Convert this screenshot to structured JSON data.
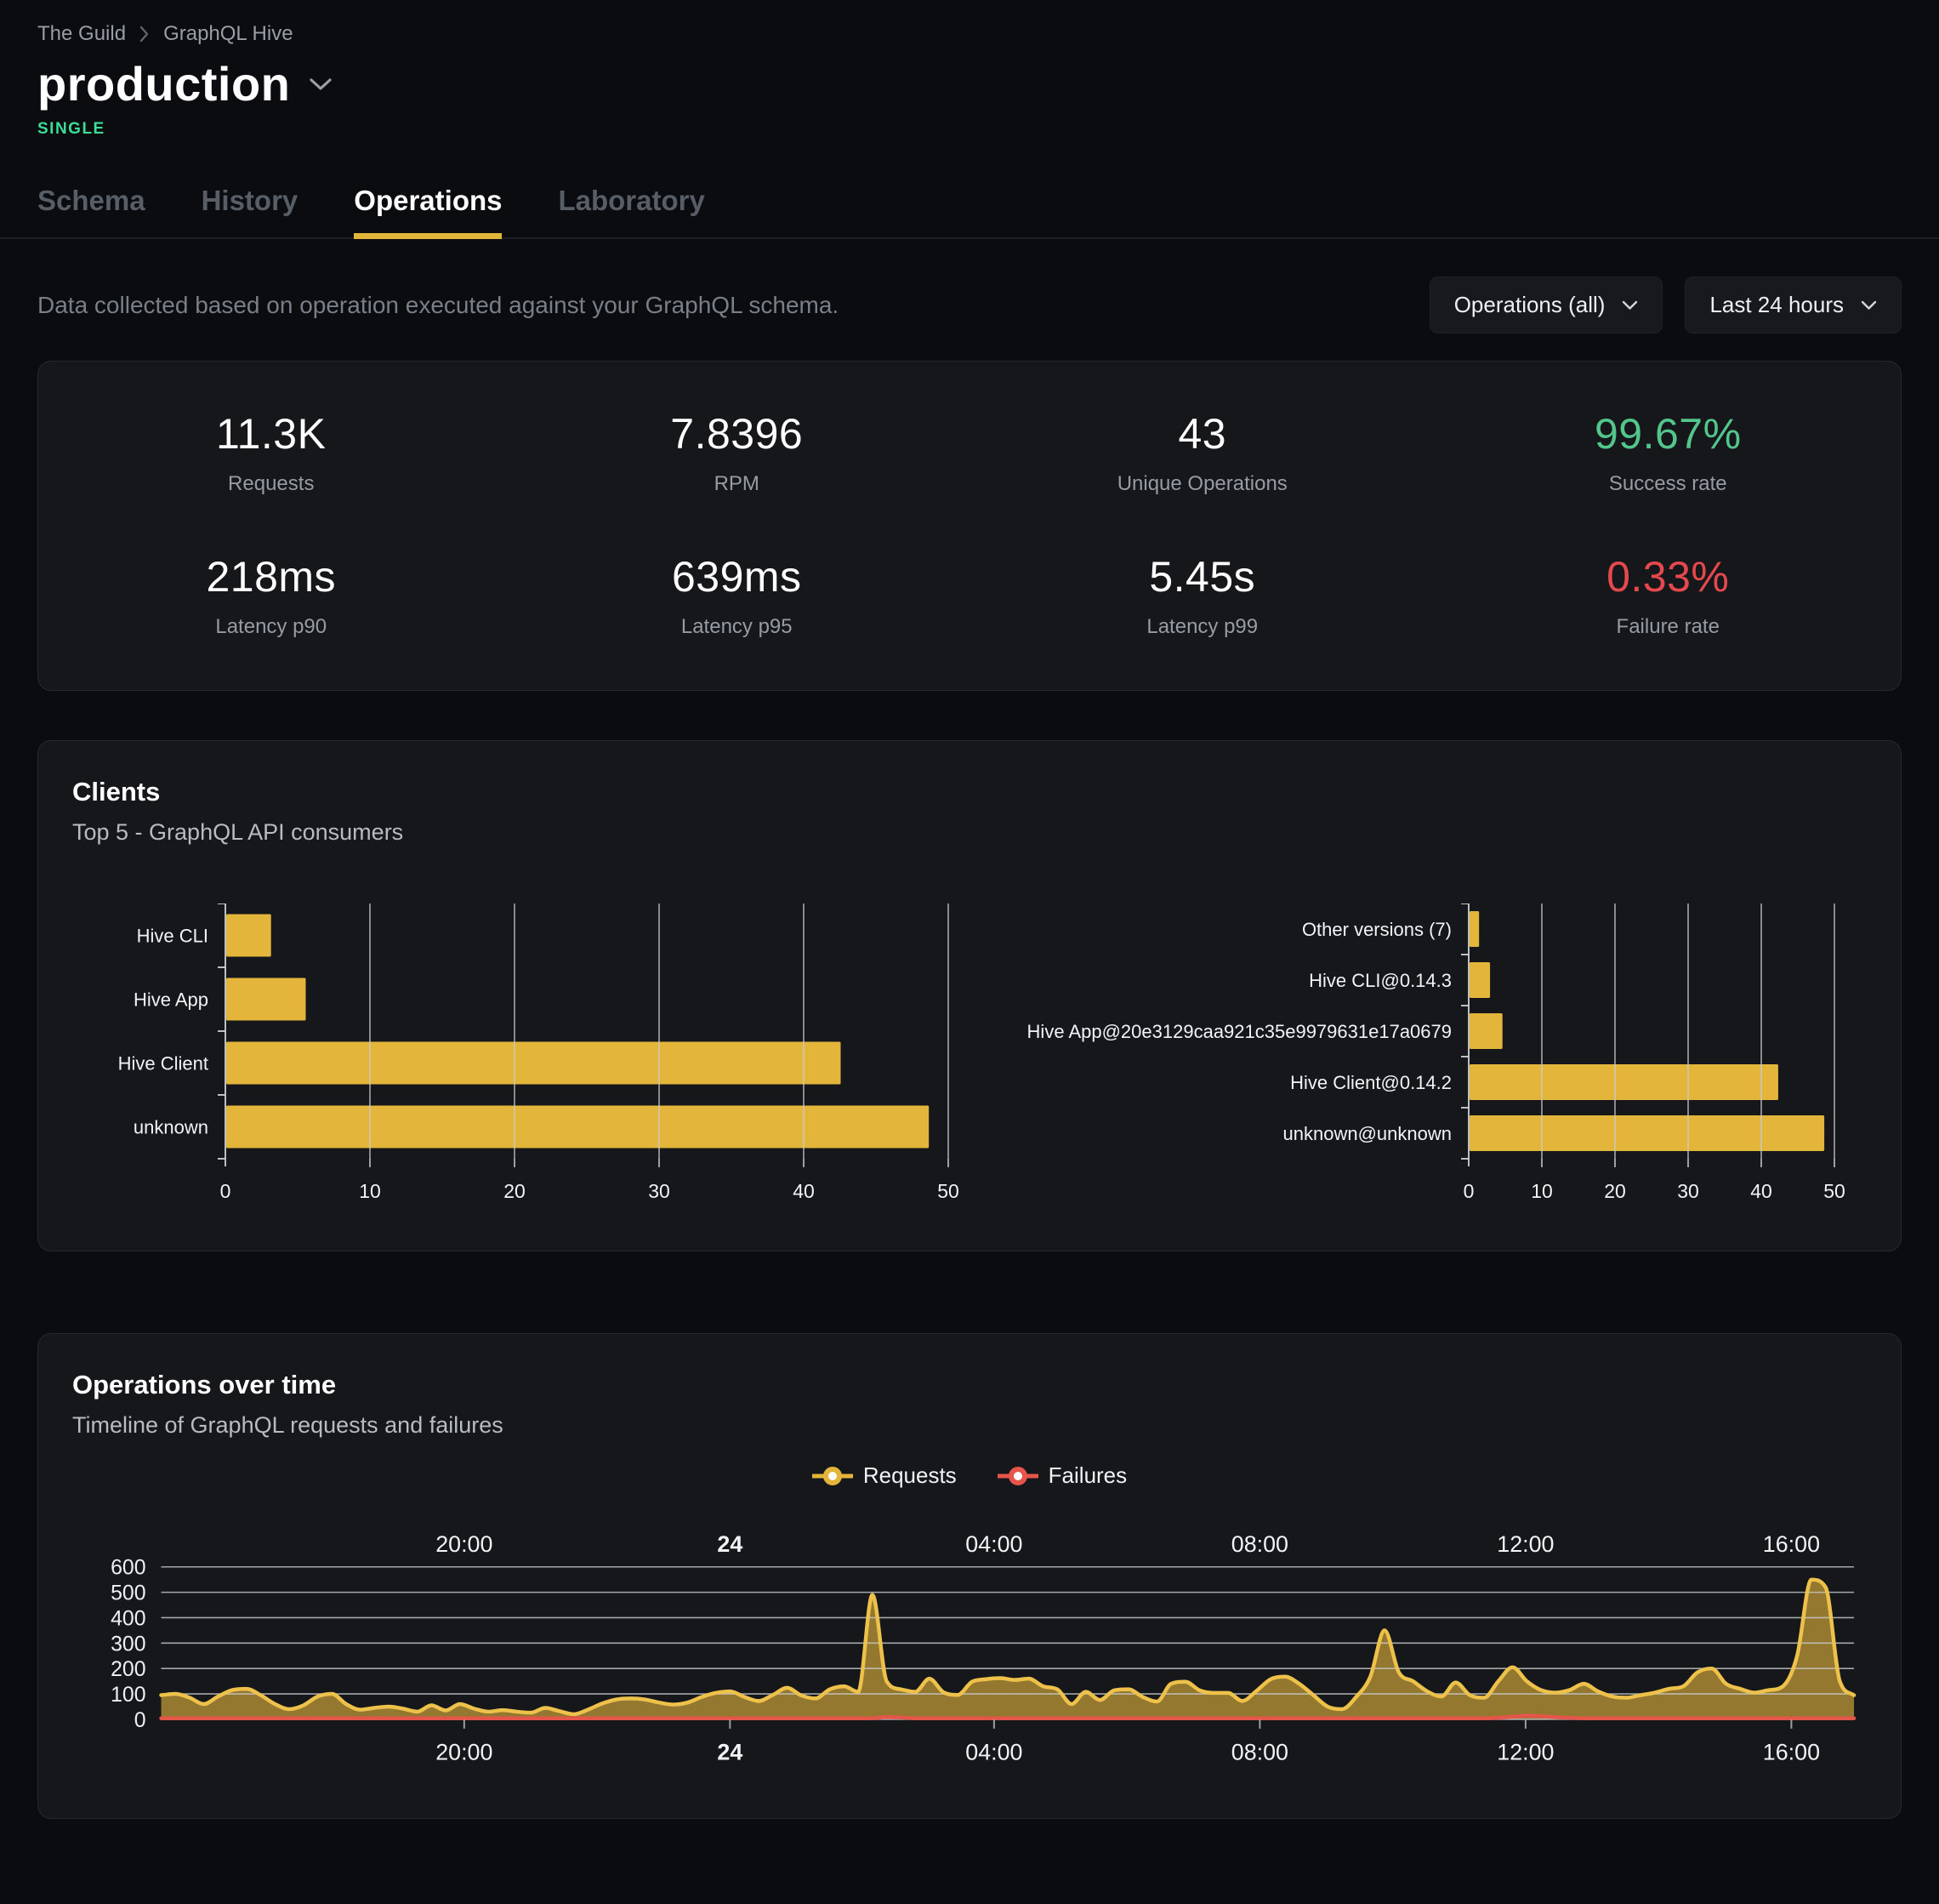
{
  "breadcrumb": {
    "items": [
      "The Guild",
      "GraphQL Hive"
    ]
  },
  "header": {
    "title": "production",
    "badge": "SINGLE"
  },
  "tabs": [
    {
      "label": "Schema",
      "active": false
    },
    {
      "label": "History",
      "active": false
    },
    {
      "label": "Operations",
      "active": true
    },
    {
      "label": "Laboratory",
      "active": false
    }
  ],
  "controls": {
    "description": "Data collected based on operation executed against your GraphQL schema.",
    "operations_filter": "Operations (all)",
    "period_filter": "Last 24 hours"
  },
  "stats": [
    {
      "value": "11.3K",
      "label": "Requests",
      "color": "#ffffff"
    },
    {
      "value": "7.8396",
      "label": "RPM",
      "color": "#ffffff"
    },
    {
      "value": "43",
      "label": "Unique Operations",
      "color": "#ffffff"
    },
    {
      "value": "99.67%",
      "label": "Success rate",
      "color": "#52c68b"
    },
    {
      "value": "218ms",
      "label": "Latency p90",
      "color": "#ffffff"
    },
    {
      "value": "639ms",
      "label": "Latency p95",
      "color": "#ffffff"
    },
    {
      "value": "5.45s",
      "label": "Latency p99",
      "color": "#ffffff"
    },
    {
      "value": "0.33%",
      "label": "Failure rate",
      "color": "#e5484d"
    }
  ],
  "clients_panel": {
    "title": "Clients",
    "subtitle": "Top 5 - GraphQL API consumers"
  },
  "ops_panel": {
    "title": "Operations over time",
    "subtitle": "Timeline of GraphQL requests and failures",
    "legend": [
      {
        "label": "Requests",
        "color": "#e3b53b"
      },
      {
        "label": "Failures",
        "color": "#e5554a"
      }
    ]
  },
  "colors": {
    "accent": "#e3b53b",
    "accent_bright": "#eec24a",
    "failures": "#e5554a",
    "grid": "#c9ccce"
  },
  "chart_data": [
    {
      "type": "bar",
      "orientation": "horizontal",
      "title": "Clients by name",
      "categories": [
        "Hive CLI",
        "Hive App",
        "Hive Client",
        "unknown"
      ],
      "values": [
        3.1,
        5.5,
        42.5,
        48.6
      ],
      "xlim": [
        0,
        50
      ],
      "ticks": [
        0,
        10,
        20,
        30,
        40,
        50
      ],
      "grid": true,
      "legend_position": "none"
    },
    {
      "type": "bar",
      "orientation": "horizontal",
      "title": "Clients by version",
      "categories": [
        "Other versions (7)",
        "Hive CLI@0.14.3",
        "Hive App@20e3129caa921c35e9979631e17a0679",
        "Hive Client@0.14.2",
        "unknown@unknown"
      ],
      "values": [
        1.3,
        2.8,
        4.5,
        42.2,
        48.5
      ],
      "xlim": [
        0,
        50
      ],
      "ticks": [
        0,
        10,
        20,
        30,
        40,
        50
      ],
      "grid": true,
      "legend_position": "none"
    },
    {
      "type": "area",
      "title": "Operations over time",
      "subtitle": "Timeline of GraphQL requests and failures",
      "xlabel": "",
      "ylabel": "",
      "ylim": [
        0,
        600
      ],
      "yticks": [
        0,
        100,
        200,
        300,
        400,
        500,
        600
      ],
      "grid": true,
      "legend_position": "top-center",
      "xticks": [
        {
          "label": "20:00",
          "f": 0.179,
          "bold": false
        },
        {
          "label": "24",
          "f": 0.336,
          "bold": true
        },
        {
          "label": "04:00",
          "f": 0.492,
          "bold": false
        },
        {
          "label": "08:00",
          "f": 0.649,
          "bold": false
        },
        {
          "label": "12:00",
          "f": 0.806,
          "bold": false
        },
        {
          "label": "16:00",
          "f": 0.963,
          "bold": false
        }
      ],
      "series": [
        {
          "name": "Requests",
          "color": "#e3b53b",
          "values": [
            95,
            100,
            85,
            60,
            90,
            115,
            120,
            95,
            60,
            40,
            55,
            90,
            100,
            60,
            38,
            45,
            50,
            42,
            30,
            55,
            35,
            60,
            42,
            30,
            36,
            30,
            26,
            45,
            32,
            20,
            38,
            62,
            78,
            82,
            78,
            66,
            58,
            66,
            88,
            104,
            110,
            88,
            72,
            96,
            124,
            94,
            82,
            118,
            130,
            108,
            490,
            150,
            118,
            108,
            160,
            106,
            96,
            148,
            158,
            162,
            155,
            160,
            130,
            118,
            60,
            108,
            76,
            114,
            118,
            88,
            70,
            140,
            148,
            114,
            104,
            104,
            72,
            112,
            158,
            168,
            140,
            95,
            50,
            40,
            88,
            168,
            350,
            185,
            150,
            110,
            90,
            145,
            95,
            85,
            150,
            205,
            150,
            115,
            105,
            115,
            140,
            110,
            90,
            85,
            95,
            105,
            120,
            130,
            185,
            200,
            140,
            120,
            105,
            115,
            130,
            250,
            550,
            520,
            150,
            95
          ]
        },
        {
          "name": "Failures",
          "color": "#e5554a",
          "values": [
            4,
            4,
            4,
            4,
            4,
            4,
            4,
            4,
            4,
            4,
            4,
            4,
            4,
            4,
            4,
            4,
            4,
            4,
            4,
            4,
            4,
            4,
            4,
            4,
            4,
            4,
            4,
            4,
            4,
            4,
            4,
            4,
            4,
            4,
            4,
            4,
            4,
            4,
            4,
            4,
            4,
            4,
            4,
            4,
            4,
            4,
            4,
            4,
            4,
            4,
            4,
            9,
            7,
            4,
            4,
            4,
            4,
            4,
            4,
            4,
            4,
            4,
            4,
            4,
            4,
            4,
            4,
            4,
            4,
            4,
            4,
            4,
            4,
            4,
            4,
            4,
            4,
            4,
            4,
            4,
            4,
            4,
            4,
            4,
            4,
            4,
            4,
            4,
            4,
            4,
            4,
            4,
            4,
            4,
            6,
            10,
            14,
            12,
            8,
            6,
            4,
            4,
            4,
            4,
            4,
            4,
            4,
            4,
            4,
            4,
            4,
            4,
            4,
            4,
            4,
            4,
            4,
            4,
            4,
            4
          ]
        }
      ]
    }
  ]
}
